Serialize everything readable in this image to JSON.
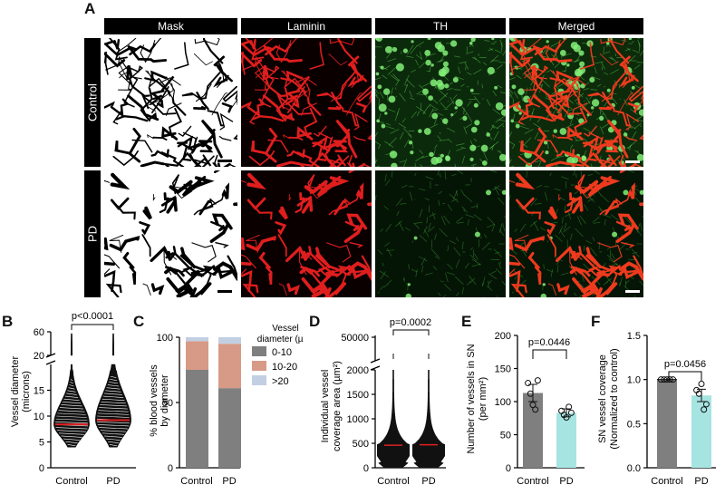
{
  "panel_a": {
    "letter": "A",
    "columns": [
      "Mask",
      "Laminin",
      "TH",
      "Merged"
    ],
    "rows": [
      "Control",
      "PD"
    ]
  },
  "panel_b": {
    "letter": "B",
    "pvalue": "p<0.0001"
  },
  "panel_c": {
    "letter": "C",
    "legend_title_1": "Vessel",
    "legend_title_2": "diameter (µm)",
    "legend": [
      "0-10",
      "10-20",
      ">20"
    ]
  },
  "panel_d": {
    "letter": "D",
    "pvalue": "p=0.0002"
  },
  "panel_e": {
    "letter": "E",
    "pvalue": "p=0.0446"
  },
  "panel_f": {
    "letter": "F",
    "pvalue": "p=0.0456"
  },
  "colors": {
    "grey": "#7f7f80",
    "salmon": "#d79a86",
    "lightblue": "#c2cfe3",
    "cyan": "#a6e4e1",
    "red_median": "#e02020"
  },
  "chart_data": [
    {
      "id": "B",
      "type": "violin",
      "ylabel": "Vessel diameter (microns)",
      "categories": [
        "Control",
        "PD"
      ],
      "axis_break": true,
      "ylim_lower": [
        0,
        20
      ],
      "ylim_upper": [
        20,
        60
      ],
      "yticks": [
        "0",
        "5",
        "10",
        "15",
        "20",
        "60"
      ],
      "medians": [
        8.4,
        9.2
      ]
    },
    {
      "id": "C",
      "type": "bar",
      "stacked": true,
      "ylabel": "% blood vessels by diameter",
      "categories": [
        "Control",
        "PD"
      ],
      "ylim": [
        0,
        100
      ],
      "yticks": [
        "0",
        "50",
        "100"
      ],
      "series": [
        {
          "name": "0-10",
          "values": [
            75,
            61
          ]
        },
        {
          "name": "10-20",
          "values": [
            22,
            34
          ]
        },
        {
          "name": ">20",
          "values": [
            3,
            5
          ]
        }
      ]
    },
    {
      "id": "D",
      "type": "violin",
      "ylabel": "Individual vessel coverage area (µm²)",
      "categories": [
        "Control",
        "PD"
      ],
      "axis_break": true,
      "yticks": [
        "0",
        "500",
        "1000",
        "1500",
        "2000",
        "50000"
      ],
      "medians": [
        460,
        470
      ]
    },
    {
      "id": "E",
      "type": "bar",
      "ylabel": "Number of vessels in SN (per mm²)",
      "categories": [
        "Control",
        "PD"
      ],
      "ylim": [
        0,
        200
      ],
      "yticks": [
        "0",
        "50",
        "100",
        "150",
        "200"
      ],
      "values": [
        113,
        83
      ],
      "errors": [
        13,
        6
      ],
      "points": [
        [
          128,
          112,
          95,
          88,
          132
        ],
        [
          86,
          80,
          76,
          92,
          83
        ]
      ]
    },
    {
      "id": "F",
      "type": "bar",
      "ylabel": "SN vessel coverage (Normalized to control)",
      "categories": [
        "Control",
        "PD"
      ],
      "ylim": [
        0,
        1.5
      ],
      "yticks": [
        "0.0",
        "0.5",
        "1.0",
        "1.5"
      ],
      "values": [
        1.0,
        0.82
      ],
      "errors": [
        0.0,
        0.07
      ],
      "points": [
        [
          1,
          1,
          1,
          1,
          1
        ],
        [
          0.88,
          0.84,
          0.95,
          0.66,
          0.72
        ]
      ]
    }
  ]
}
